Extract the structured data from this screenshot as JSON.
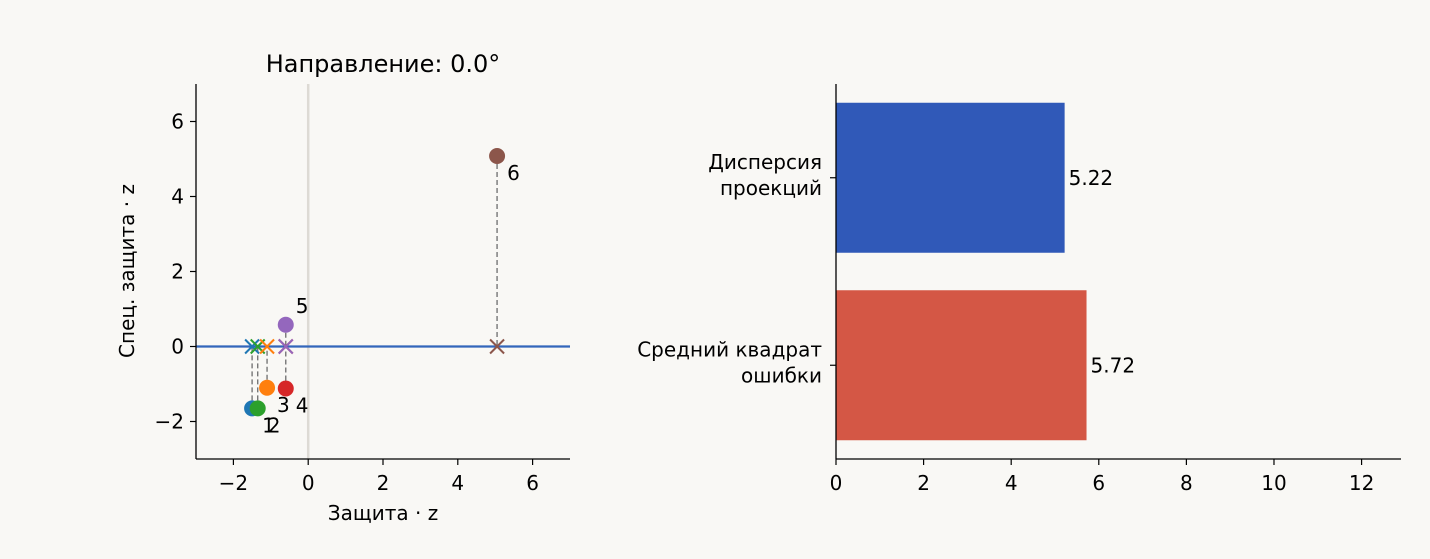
{
  "chart_data": [
    {
      "type": "scatter",
      "title": "Направление: 0.0°",
      "xlabel": "Защита · z",
      "ylabel": "Спец. защита · z",
      "xlim": [
        -3,
        7
      ],
      "ylim": [
        -3,
        7
      ],
      "xticks": [
        -2,
        0,
        2,
        4,
        6
      ],
      "yticks": [
        -2,
        0,
        2,
        4,
        6
      ],
      "direction_deg": 0.0,
      "points": [
        {
          "label": "1",
          "x": -1.5,
          "y": -1.65,
          "color": "#1f77b4"
        },
        {
          "label": "2",
          "x": -1.35,
          "y": -1.65,
          "color": "#2ca02c"
        },
        {
          "label": "3",
          "x": -1.1,
          "y": -1.1,
          "color": "#ff7f0e"
        },
        {
          "label": "4",
          "x": -0.6,
          "y": -1.12,
          "color": "#d62728"
        },
        {
          "label": "5",
          "x": -0.6,
          "y": 0.58,
          "color": "#9467bd"
        },
        {
          "label": "6",
          "x": 5.05,
          "y": 5.08,
          "color": "#8c564b"
        }
      ],
      "line_color": "#3366bb",
      "grid": false
    },
    {
      "type": "bar",
      "orientation": "horizontal",
      "categories": [
        [
          "Дисперсия",
          "проекций"
        ],
        [
          "Средний квадрат",
          "ошибки"
        ]
      ],
      "values": [
        5.22,
        5.72
      ],
      "value_labels": [
        "5.22",
        "5.72"
      ],
      "colors": [
        "#3059b8",
        "#d45745"
      ],
      "xlim": [
        0,
        12.9
      ],
      "xticks": [
        0,
        2,
        4,
        6,
        8,
        10,
        12
      ],
      "grid": false
    }
  ]
}
